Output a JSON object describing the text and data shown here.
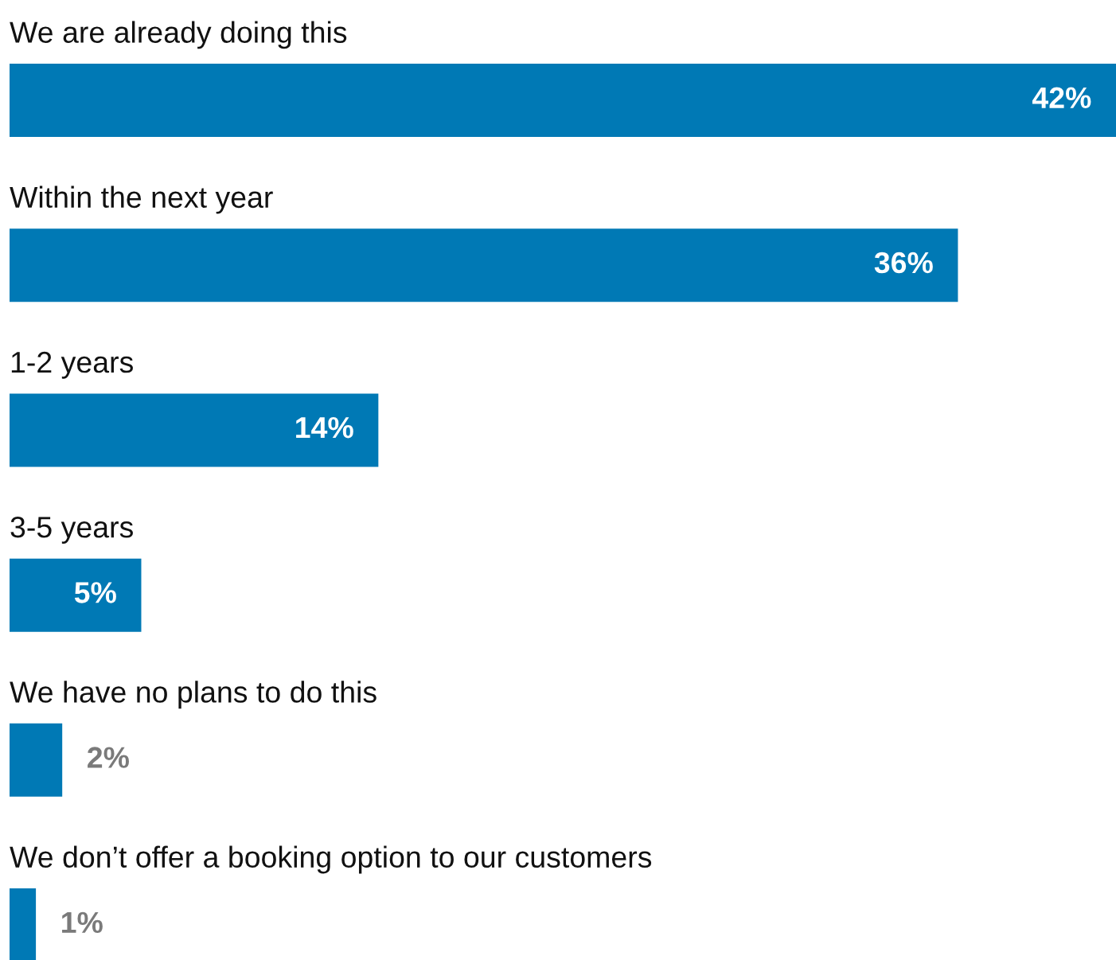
{
  "chart_data": {
    "type": "bar",
    "orientation": "horizontal",
    "categories": [
      "We are already doing this",
      "Within the next year",
      "1-2 years",
      "3-5 years",
      "We have no plans to do this",
      "We don’t offer a booking option to our customers"
    ],
    "values": [
      42,
      36,
      14,
      5,
      2,
      1
    ],
    "value_labels": [
      "42%",
      "36%",
      "14%",
      "5%",
      "2%",
      "1%"
    ],
    "color": "#0079b5"
  }
}
